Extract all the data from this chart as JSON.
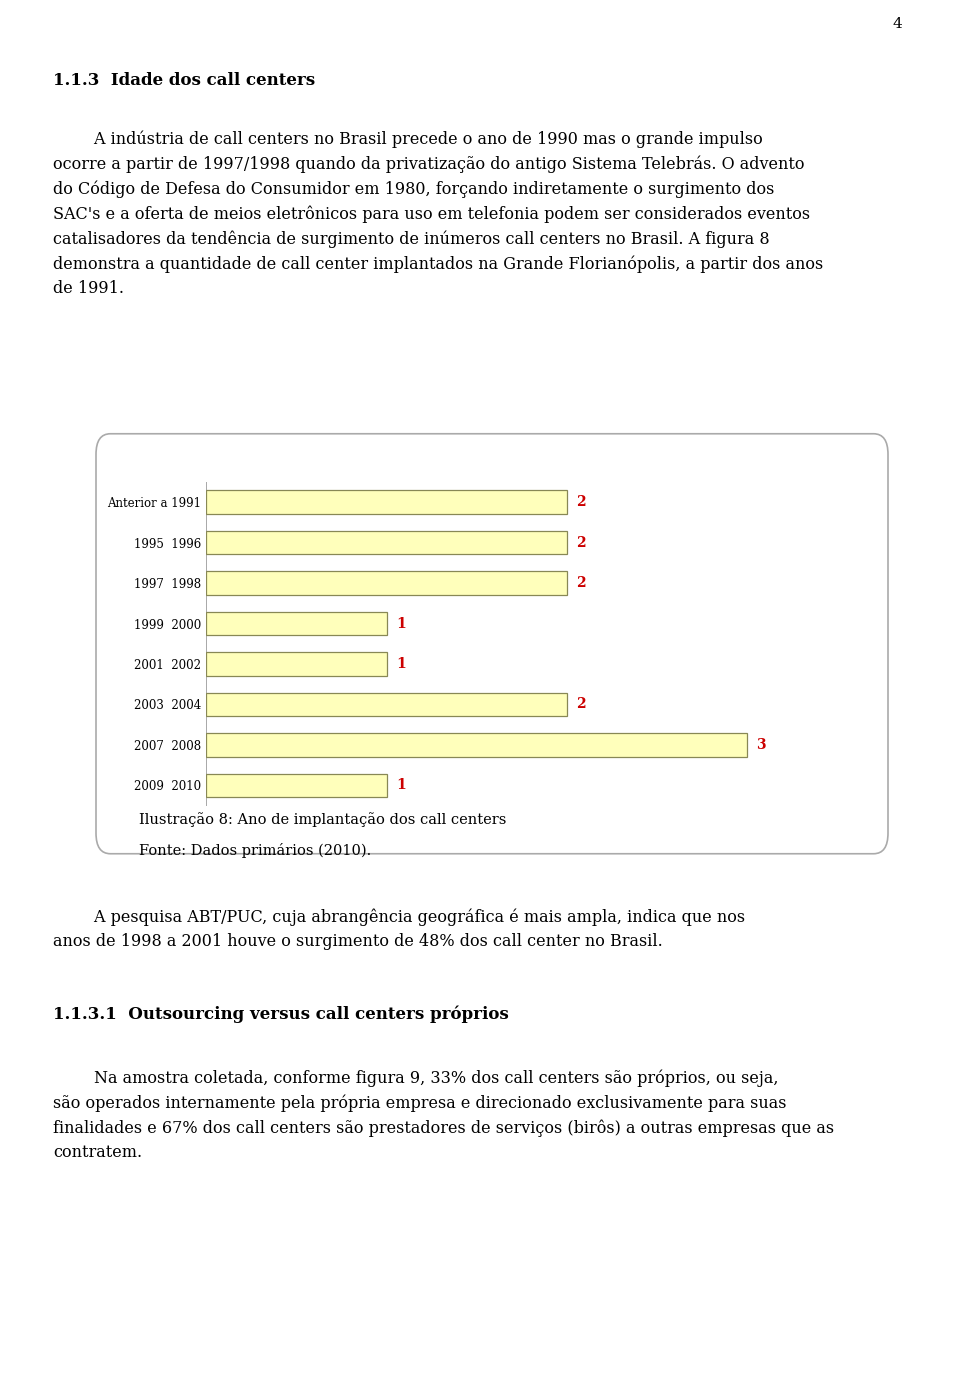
{
  "categories": [
    "Anterior a 1991",
    "1995  1996",
    "1997  1998",
    "1999  2000",
    "2001  2002",
    "2003  2004",
    "2007  2008",
    "2009  2010"
  ],
  "values": [
    2,
    2,
    2,
    1,
    1,
    2,
    3,
    1
  ],
  "bar_color": "#FFFFBB",
  "bar_edge_color": "#888855",
  "value_color": "#CC0000",
  "caption_line1": "Ilustração 8: Ano de implantação dos call centers",
  "caption_line2": "Fonte: Dados primários (2010).",
  "page_number": "4",
  "section_title": "1.1.3  Idade dos call centers",
  "section2_title": "1.1.3.1  Outsourcing versus call centers próprios",
  "xlim": [
    0,
    3.3
  ],
  "fig_bg": "#FFFFFF",
  "chart_bg": "#FFFFFF",
  "font_family": "DejaVu Serif"
}
